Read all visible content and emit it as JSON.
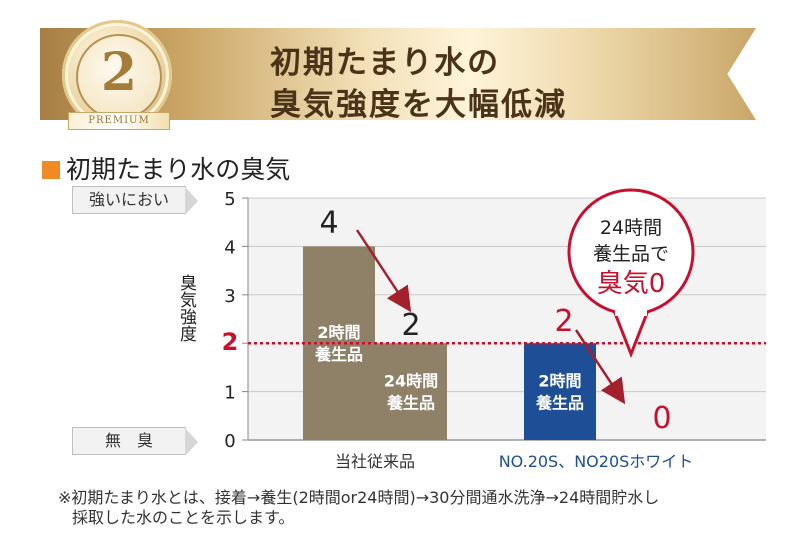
{
  "banner": {
    "number": "2",
    "badge": "PREMIUM",
    "title_line1": "初期たまり水の",
    "title_line2": "臭気強度を大幅低減"
  },
  "section_title": "初期たまり水の臭気",
  "side_labels": {
    "top": "強いにおい",
    "bottom": "無　臭"
  },
  "callout": {
    "line1": "24時間",
    "line2": "養生品で",
    "line3": "臭気0"
  },
  "note": {
    "line1": "※初期たまり水とは、接着→養生(2時間or24時間)→30分間通水洗浄→24時間貯水し",
    "line2": "採取した水のことを示します。"
  },
  "colors": {
    "ours": "#8f8167",
    "competitor": "#1d4e96",
    "accent": "#c8102e",
    "arrow": "#a4202c"
  },
  "chart_data": {
    "type": "bar",
    "ylabel": "臭気強度",
    "ylim": [
      0,
      5
    ],
    "yticks": [
      0,
      1,
      2,
      3,
      4,
      5
    ],
    "reference_line": 2,
    "groups": [
      {
        "category": "当社従来品",
        "bars": [
          {
            "label": "2時間\n養生品",
            "value": 4,
            "value_label": "4",
            "color": "#8f8167"
          },
          {
            "label": "24時間\n養生品",
            "value": 2,
            "value_label": "2",
            "color": "#8f8167"
          }
        ]
      },
      {
        "category": "NO.20S、NO20Sホワイト",
        "bars": [
          {
            "label": "2時間\n養生品",
            "value": 2,
            "value_label": "2",
            "color": "#1d4e96"
          },
          {
            "label": "24時間\n養生品",
            "value": 0,
            "value_label": "0",
            "color": "#1d4e96"
          }
        ]
      }
    ]
  }
}
